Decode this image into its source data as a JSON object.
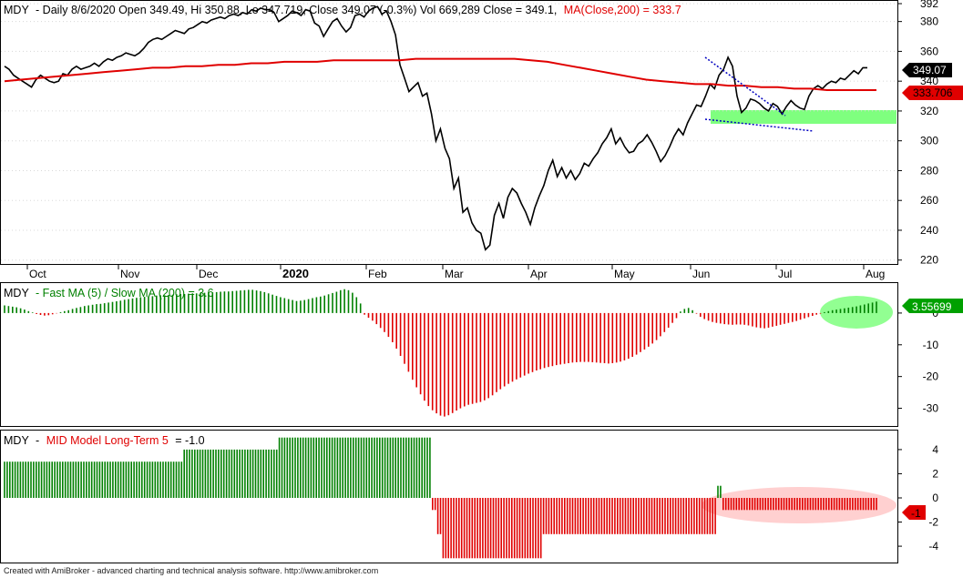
{
  "header": {
    "symbol": "MDY",
    "info": "- Daily 8/6/2020 Open 349.49, Hi 350.88, Lo 347.719, Close 349.07 (-0.3%) Vol 669,289 Close = 349.1,",
    "ma_label": "MA(Close,200) = 333.7"
  },
  "panel2_title": {
    "symbol": "MDY",
    "label": "- Fast MA (5) / Slow MA (200) = 3.6"
  },
  "panel3_title": {
    "symbol": "MDY",
    "label_prefix": "-",
    "indicator": "MID Model Long-Term 5",
    "value_text": "= -1.0"
  },
  "footer": "Created with AmiBroker - advanced charting and technical analysis software. http://www.amibroker.com",
  "colors": {
    "price": "#000000",
    "ma": "#e00000",
    "positive": "#008000",
    "negative": "#e00000",
    "highlight_green": "#7fff7f",
    "highlight_pink": "#ffd0d0",
    "trendline": "#0000c0"
  },
  "chart_data": [
    {
      "type": "line",
      "title": "MDY Daily price with MA(Close,200)",
      "x_labels": [
        "Oct",
        "Nov",
        "Dec",
        "2020",
        "Feb",
        "Mar",
        "Apr",
        "May",
        "Jun",
        "Jul",
        "Aug"
      ],
      "y_ticks": [
        220,
        240,
        260,
        280,
        300,
        320,
        340,
        360,
        380,
        392
      ],
      "ylim": [
        218,
        392
      ],
      "last_price_label": "349.07",
      "last_ma_label": "333.706",
      "series": [
        {
          "name": "Close",
          "values": [
            350,
            348,
            344,
            342,
            340,
            338,
            336,
            341,
            344,
            342,
            340,
            339,
            340,
            345,
            344,
            348,
            350,
            348,
            349,
            350,
            352,
            350,
            353,
            355,
            354,
            356,
            357,
            359,
            358,
            357,
            359,
            362,
            366,
            368,
            369,
            368,
            370,
            372,
            374,
            373,
            372,
            375,
            376,
            378,
            380,
            379,
            381,
            382,
            383,
            382,
            384,
            385,
            384,
            386,
            385,
            388,
            387,
            389,
            388,
            388,
            386,
            380,
            382,
            384,
            387,
            386,
            384,
            388,
            387,
            379,
            377,
            370,
            375,
            380,
            382,
            377,
            373,
            376,
            384,
            385,
            383,
            387,
            389,
            390,
            385,
            387,
            380,
            371,
            351,
            342,
            333,
            336,
            339,
            330,
            332,
            318,
            300,
            308,
            295,
            288,
            268,
            275,
            252,
            255,
            245,
            240,
            238,
            227,
            230,
            250,
            258,
            248,
            262,
            268,
            265,
            258,
            252,
            244,
            255,
            263,
            270,
            280,
            287,
            276,
            282,
            275,
            280,
            274,
            278,
            285,
            283,
            288,
            292,
            298,
            302,
            308,
            298,
            302,
            296,
            292,
            293,
            298,
            300,
            304,
            299,
            293,
            286,
            290,
            296,
            303,
            308,
            304,
            312,
            318,
            324,
            323,
            330,
            338,
            335,
            344,
            348,
            356,
            350,
            330,
            319,
            322,
            328,
            327,
            325,
            322,
            320,
            325,
            323,
            318,
            323,
            327,
            324,
            322,
            321,
            330,
            335,
            337,
            335,
            338,
            340,
            339,
            342,
            341,
            344,
            347,
            345,
            349,
            349
          ]
        },
        {
          "name": "MA(Close,200)",
          "values": [
            340,
            341,
            342,
            343,
            344,
            345,
            346,
            347,
            348,
            349,
            349,
            350,
            350,
            351,
            351,
            352,
            352,
            353,
            353,
            353,
            354,
            354,
            354,
            354,
            354,
            355,
            355,
            355,
            355,
            355,
            355,
            355,
            354,
            353,
            351,
            349,
            347,
            345,
            343,
            341,
            340,
            339,
            338,
            338,
            337,
            337,
            336,
            336,
            335,
            335,
            334,
            334,
            334,
            334
          ]
        }
      ],
      "annotations": [
        "blue dotted triangle trendlines (Jun–Jul)",
        "green support zone ~313–322"
      ]
    },
    {
      "type": "bar",
      "title": "Fast MA (5) / Slow MA (200)",
      "y_ticks": [
        0,
        -10,
        -20,
        -30
      ],
      "ylim": [
        -35,
        8
      ],
      "last_value_label": "3.55699",
      "values": [
        2.4,
        2.2,
        2.0,
        1.8,
        1.5,
        1.1,
        0.6,
        0.2,
        -0.3,
        -0.6,
        -0.8,
        -0.7,
        -0.4,
        -0.1,
        0.3,
        0.6,
        0.9,
        1.3,
        1.6,
        1.9,
        2.2,
        2.4,
        2.6,
        2.8,
        2.9,
        3.1,
        3.3,
        3.5,
        3.7,
        3.9,
        4.2,
        4.4,
        4.6,
        4.8,
        5.0,
        5.1,
        5.2,
        5.3,
        5.5,
        5.6,
        5.6,
        5.7,
        5.8,
        5.9,
        6.0,
        6.0,
        6.1,
        6.2,
        6.2,
        6.3,
        6.4,
        6.5,
        6.5,
        6.6,
        6.7,
        6.8,
        6.8,
        6.9,
        7.0,
        7.1,
        7.2,
        7.3,
        7.3,
        7.1,
        6.9,
        6.6,
        6.2,
        5.8,
        5.4,
        5.0,
        4.7,
        4.4,
        4.1,
        3.8,
        3.9,
        4.1,
        4.4,
        4.7,
        5.0,
        5.2,
        5.5,
        5.9,
        6.3,
        6.7,
        7.2,
        7.5,
        7.2,
        6.4,
        5.0,
        3.0,
        -0.5,
        -1.5,
        -2.4,
        -3.5,
        -4.7,
        -6.0,
        -7.5,
        -9.2,
        -11.2,
        -13.5,
        -16.0,
        -18.5,
        -21.0,
        -23.4,
        -25.6,
        -27.6,
        -29.3,
        -30.6,
        -31.6,
        -32.3,
        -32.6,
        -32.2,
        -31.5,
        -30.7,
        -30.0,
        -29.4,
        -28.9,
        -28.6,
        -28.3,
        -28.0,
        -27.5,
        -26.8,
        -25.9,
        -24.9,
        -24.0,
        -23.1,
        -22.3,
        -21.6,
        -20.9,
        -20.3,
        -19.7,
        -19.1,
        -18.6,
        -18.1,
        -17.7,
        -17.3,
        -17.0,
        -16.7,
        -16.4,
        -16.2,
        -16.0,
        -15.8,
        -15.6,
        -15.5,
        -15.4,
        -15.4,
        -15.4,
        -15.5,
        -15.6,
        -15.7,
        -15.8,
        -15.9,
        -15.8,
        -15.6,
        -15.3,
        -14.9,
        -14.4,
        -13.8,
        -13.1,
        -12.3,
        -11.5,
        -10.6,
        -9.6,
        -8.5,
        -7.3,
        -6.0,
        -4.6,
        -3.1,
        -1.6,
        0.5,
        1.3,
        1.6,
        0.9,
        -0.2,
        -1.2,
        -1.9,
        -2.4,
        -2.8,
        -3.1,
        -3.3,
        -3.5,
        -3.6,
        -3.7,
        -3.6,
        -3.6,
        -3.7,
        -3.9,
        -4.2,
        -4.5,
        -4.7,
        -4.8,
        -4.6,
        -4.3,
        -4.0,
        -3.7,
        -3.4,
        -3.1,
        -2.8,
        -2.5,
        -2.1,
        -1.7,
        -1.3,
        -0.9,
        -0.5,
        -0.2,
        0.3,
        0.6,
        0.9,
        1.1,
        1.3,
        1.5,
        1.7,
        1.9,
        2.1,
        2.4,
        2.7,
        3.0,
        3.3,
        3.6
      ]
    },
    {
      "type": "bar",
      "title": "MID Model Long-Term 5",
      "y_ticks": [
        4,
        2,
        0,
        -2,
        -4
      ],
      "ylim": [
        -5.2,
        5.2
      ],
      "last_value_label": "-1",
      "values": [
        3,
        3,
        3,
        3,
        3,
        3,
        3,
        3,
        3,
        3,
        3,
        3,
        3,
        3,
        3,
        3,
        3,
        3,
        3,
        3,
        3,
        3,
        3,
        3,
        3,
        3,
        3,
        3,
        3,
        3,
        3,
        3,
        3,
        3,
        3,
        3,
        3,
        3,
        3,
        3,
        3,
        3,
        3,
        3,
        3,
        3,
        3,
        3,
        3,
        3,
        3,
        3,
        3,
        3,
        3,
        3,
        3,
        3,
        3,
        3,
        3,
        3,
        3,
        3,
        3,
        3,
        3,
        3,
        4,
        4,
        4,
        4,
        4,
        4,
        4,
        4,
        4,
        4,
        4,
        4,
        4,
        4,
        4,
        4,
        4,
        4,
        4,
        4,
        4,
        4,
        4,
        4,
        4,
        4,
        4,
        4,
        4,
        4,
        4,
        4,
        4,
        4,
        4,
        4,
        5,
        5,
        5,
        5,
        5,
        5,
        5,
        5,
        5,
        5,
        5,
        5,
        5,
        5,
        5,
        5,
        5,
        5,
        5,
        5,
        5,
        5,
        5,
        5,
        5,
        5,
        5,
        5,
        5,
        5,
        5,
        5,
        5,
        5,
        5,
        5,
        5,
        5,
        5,
        5,
        5,
        5,
        5,
        5,
        5,
        5,
        5,
        5,
        5,
        5,
        5,
        5,
        5,
        5,
        5,
        5,
        5,
        5,
        -1,
        -1,
        -3,
        -3,
        -5,
        -5,
        -5,
        -5,
        -5,
        -5,
        -5,
        -5,
        -5,
        -5,
        -5,
        -5,
        -5,
        -5,
        -5,
        -5,
        -5,
        -5,
        -5,
        -5,
        -5,
        -5,
        -5,
        -5,
        -5,
        -5,
        -5,
        -5,
        -5,
        -5,
        -5,
        -5,
        -5,
        -5,
        -5,
        -5,
        -5,
        -5,
        -3,
        -3,
        -3,
        -3,
        -3,
        -3,
        -3,
        -3,
        -3,
        -3,
        -3,
        -3,
        -3,
        -3,
        -3,
        -3,
        -3,
        -3,
        -3,
        -3,
        -3,
        -3,
        -3,
        -3,
        -3,
        -3,
        -3,
        -3,
        -3,
        -3,
        -3,
        -3,
        -3,
        -3,
        -3,
        -3,
        -3,
        -3,
        -3,
        -3,
        -3,
        -3,
        -3,
        -3,
        -3,
        -3,
        -3,
        -3,
        -3,
        -3,
        -3,
        -3,
        -3,
        -3,
        -3,
        -3,
        -3,
        -3,
        -3,
        -3,
        -3,
        -3,
        -3,
        -3,
        -3,
        -3,
        1,
        1,
        -1,
        -1,
        -1,
        -1,
        -1,
        -1,
        -1,
        -1,
        -1,
        -1,
        -1,
        -1,
        -1,
        -1,
        -1,
        -1,
        -1,
        -1,
        -1,
        -1,
        -1,
        -1,
        -1,
        -1,
        -1,
        -1,
        -1,
        -1,
        -1,
        -1,
        -1,
        -1,
        -1,
        -1,
        -1,
        -1,
        -1,
        -1,
        -1,
        -1,
        -1,
        -1,
        -1,
        -1,
        -1,
        -1,
        -1,
        -1,
        -1,
        -1,
        -1,
        -1,
        -1,
        -1,
        -1,
        -1,
        -1,
        -1,
        -1
      ]
    }
  ]
}
